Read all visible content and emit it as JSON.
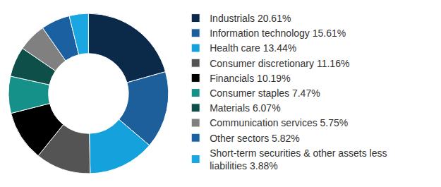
{
  "chart_data": {
    "type": "pie",
    "categories": [
      "Industrials 20.61%",
      "Information technology 15.61%",
      "Health care 13.44%",
      "Consumer discretionary 11.16%",
      "Financials 10.19%",
      "Consumer staples 7.47%",
      "Materials 6.07%",
      "Communication services 5.75%",
      "Other sectors 5.82%",
      "Short-term securities & other assets less liabilities 3.88%"
    ],
    "values": [
      20.61,
      15.61,
      13.44,
      11.16,
      10.19,
      7.47,
      6.07,
      5.75,
      5.82,
      3.88
    ],
    "colors": [
      "#0b2a4a",
      "#1d5f9a",
      "#14a1dc",
      "#545454",
      "#000000",
      "#16918a",
      "#0e4f49",
      "#808080",
      "#1b60a0",
      "#1aa6e0"
    ],
    "legend": "right"
  }
}
